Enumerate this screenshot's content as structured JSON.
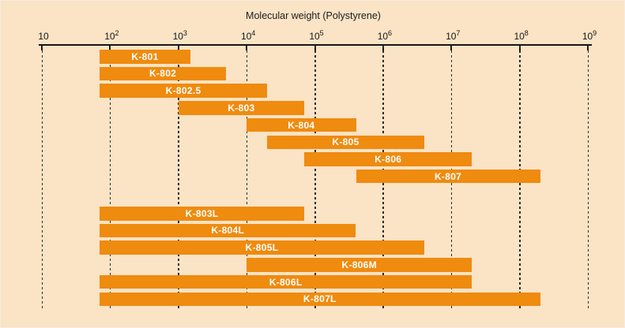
{
  "colors": {
    "background": "#fbe3c5",
    "bar": "#ef8b0f",
    "bar_label": "#ffffff",
    "axis": "#161616"
  },
  "chart_data": {
    "type": "bar",
    "orientation": "horizontal",
    "title": "Molecular weight (Polystyrene)",
    "x_scale": "log10",
    "xlim": [
      10,
      1000000000
    ],
    "grid": "dashed-vertical-per-decade",
    "legend": "none",
    "x_ticks": [
      {
        "mantissa": "10",
        "exponent": ""
      },
      {
        "mantissa": "10",
        "exponent": "2"
      },
      {
        "mantissa": "10",
        "exponent": "3"
      },
      {
        "mantissa": "10",
        "exponent": "4"
      },
      {
        "mantissa": "10",
        "exponent": "5"
      },
      {
        "mantissa": "10",
        "exponent": "6"
      },
      {
        "mantissa": "10",
        "exponent": "7"
      },
      {
        "mantissa": "10",
        "exponent": "8"
      },
      {
        "mantissa": "10",
        "exponent": "9"
      }
    ],
    "groups": [
      {
        "name": "upper-series",
        "bars": [
          {
            "label": "K-801",
            "min": 70,
            "max": 1500
          },
          {
            "label": "K-802",
            "min": 70,
            "max": 5000
          },
          {
            "label": "K-802.5",
            "min": 70,
            "max": 20000
          },
          {
            "label": "K-803",
            "min": 1000,
            "max": 70000
          },
          {
            "label": "K-804",
            "min": 10000,
            "max": 400000
          },
          {
            "label": "K-805",
            "min": 20000,
            "max": 4000000
          },
          {
            "label": "K-806",
            "min": 70000,
            "max": 20000000
          },
          {
            "label": "K-807",
            "min": 400000,
            "max": 200000000
          }
        ]
      },
      {
        "name": "lower-series",
        "bars": [
          {
            "label": "K-803L",
            "min": 70,
            "max": 70000
          },
          {
            "label": "K-804L",
            "min": 70,
            "max": 400000
          },
          {
            "label": "K-805L",
            "min": 70,
            "max": 4000000
          },
          {
            "label": "K-806M",
            "min": 10000,
            "max": 20000000
          },
          {
            "label": "K-806L",
            "min": 70,
            "max": 20000000
          },
          {
            "label": "K-807L",
            "min": 70,
            "max": 200000000
          }
        ]
      }
    ]
  }
}
